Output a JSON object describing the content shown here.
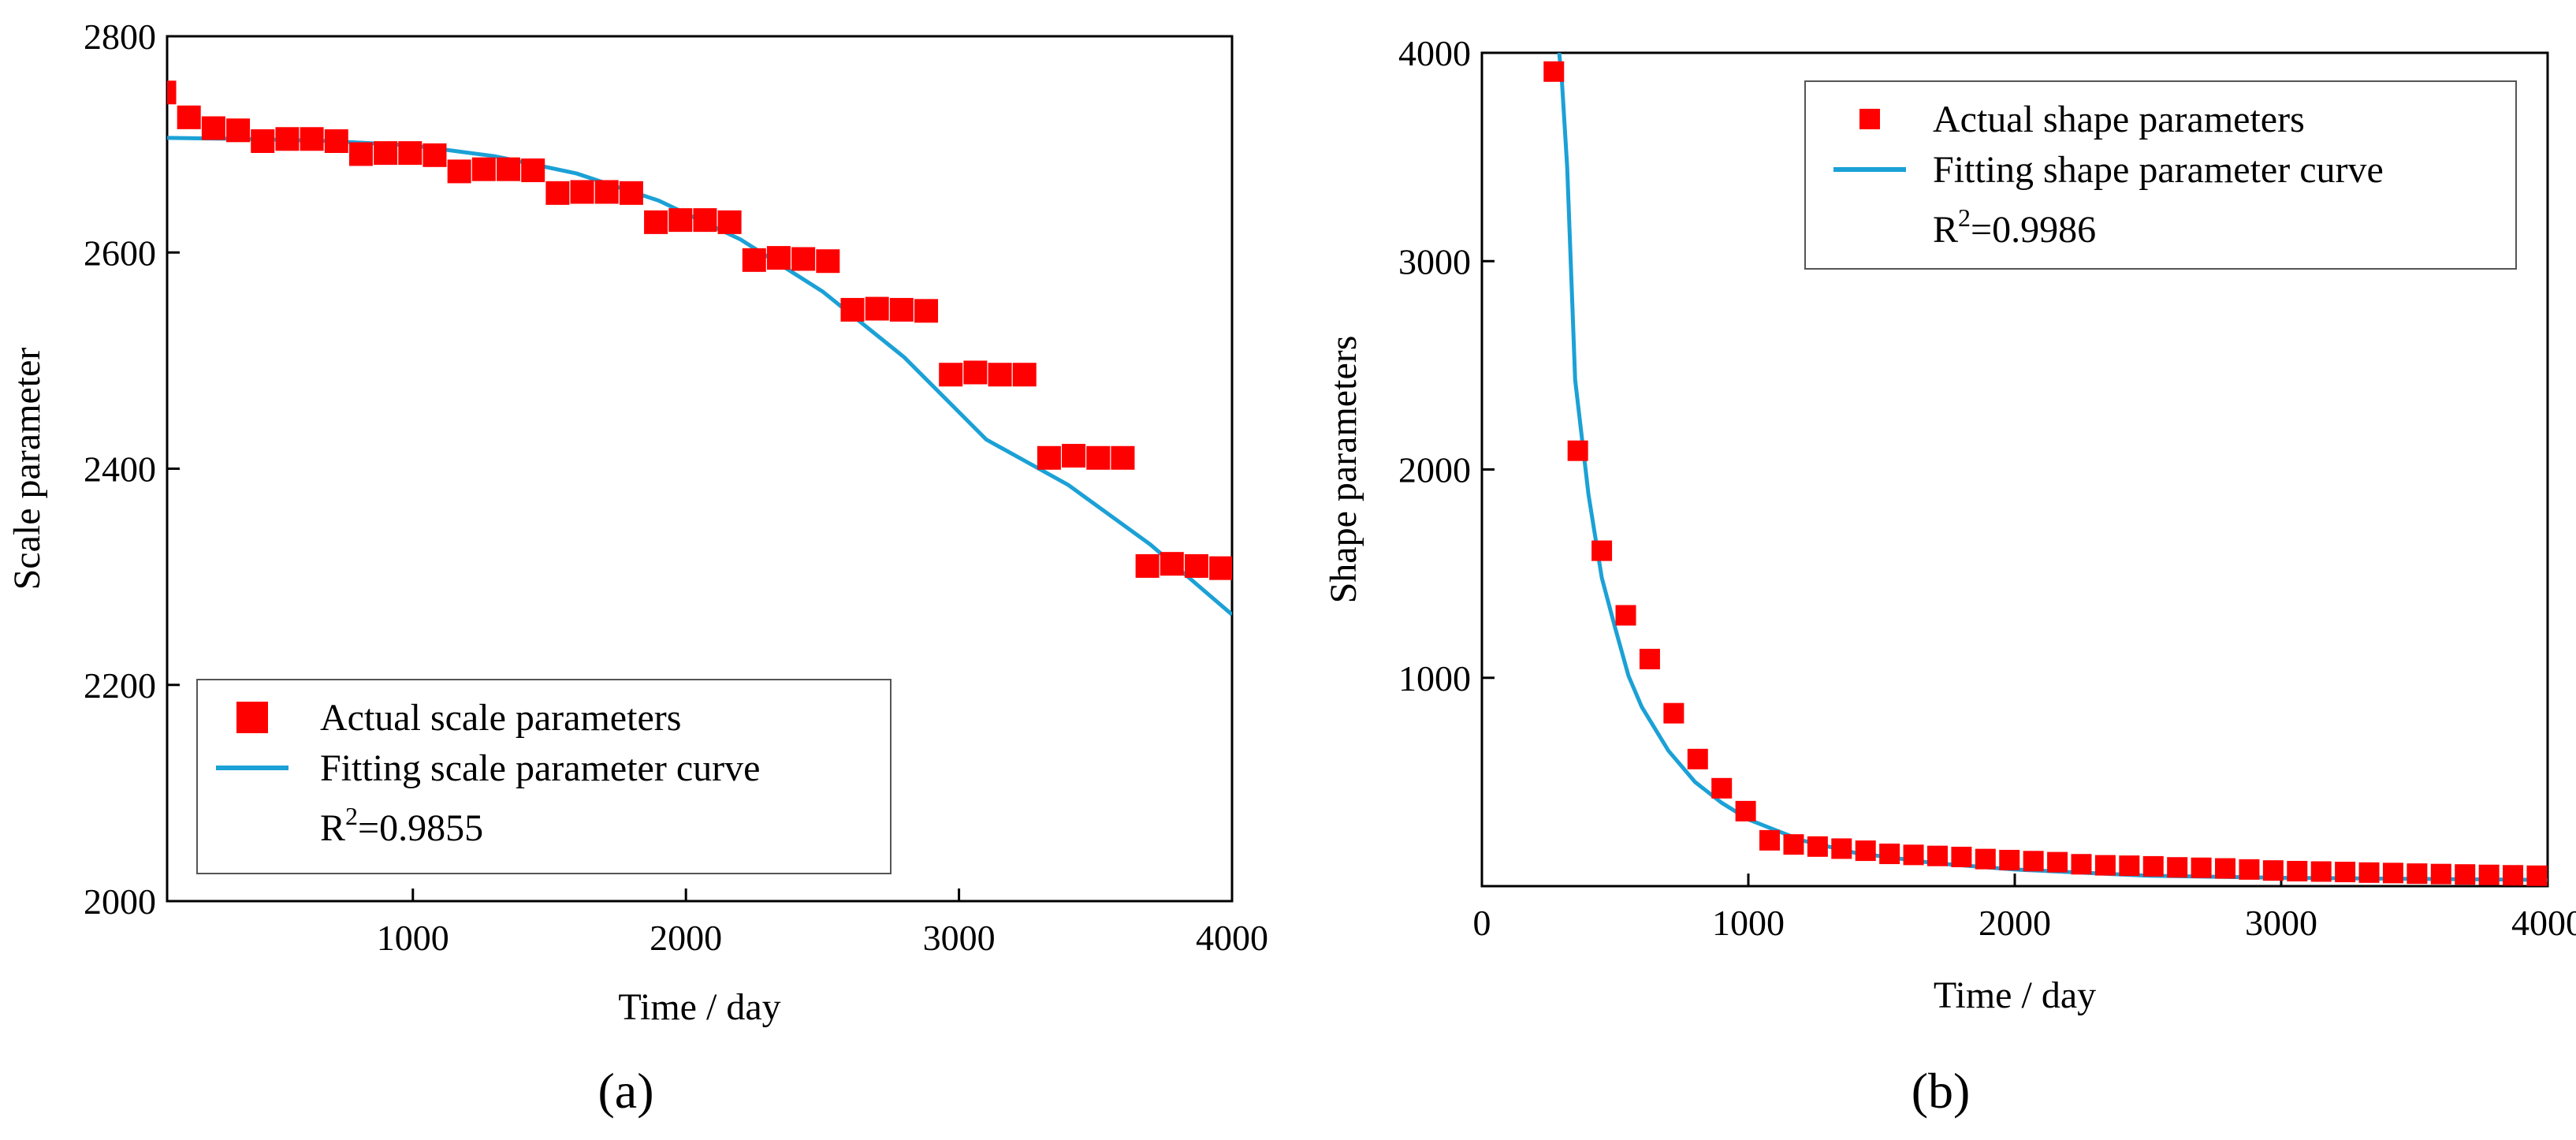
{
  "colors": {
    "marker": "#ff0000",
    "curve": "#1ba1d6",
    "axis": "#000000"
  },
  "panels": [
    {
      "label": "(a)",
      "letter": "a"
    },
    {
      "label": "(b)",
      "letter": "b"
    }
  ],
  "chart_data": [
    {
      "type": "scatter",
      "xlabel": "Time / day",
      "ylabel": "Scale parameter",
      "xlim": [
        100,
        4000
      ],
      "ylim": [
        2000,
        2800
      ],
      "xticks": [
        1000,
        2000,
        3000,
        4000
      ],
      "yticks": [
        2000,
        2200,
        2400,
        2600,
        2800
      ],
      "grid": false,
      "legend_position": "bottom-left",
      "legend": [
        "Actual scale parameters",
        "Fitting scale parameter curve"
      ],
      "annotation": {
        "base": "R",
        "sup": "2",
        "rest": "=0.9855"
      },
      "series": [
        {
          "name": "Actual scale parameters",
          "kind": "scatter",
          "x": [
            90,
            180,
            270,
            360,
            450,
            540,
            630,
            720,
            810,
            900,
            990,
            1080,
            1170,
            1260,
            1350,
            1440,
            1530,
            1620,
            1710,
            1800,
            1890,
            1980,
            2070,
            2160,
            2250,
            2340,
            2430,
            2520,
            2610,
            2700,
            2790,
            2880,
            2970,
            3060,
            3150,
            3240,
            3330,
            3420,
            3510,
            3600,
            3690,
            3780,
            3870,
            3960
          ],
          "y": [
            2748,
            2725,
            2715,
            2713,
            2703,
            2705,
            2705,
            2703,
            2691,
            2692,
            2692,
            2690,
            2675,
            2677,
            2677,
            2676,
            2655,
            2656,
            2656,
            2655,
            2628,
            2630,
            2630,
            2628,
            2593,
            2595,
            2594,
            2592,
            2547,
            2548,
            2547,
            2546,
            2487,
            2489,
            2487,
            2487,
            2410,
            2412,
            2410,
            2410,
            2310,
            2312,
            2310,
            2308
          ]
        },
        {
          "name": "Fitting scale parameter curve",
          "kind": "line",
          "x": [
            100,
            400,
            700,
            1000,
            1300,
            1600,
            1900,
            2200,
            2500,
            2800,
            3100,
            3400,
            3700,
            4000
          ],
          "y": [
            2706,
            2705,
            2703,
            2699,
            2689,
            2673,
            2648,
            2612,
            2564,
            2503,
            2427,
            2385,
            2330,
            2265
          ]
        }
      ]
    },
    {
      "type": "scatter",
      "xlabel": "Time / day",
      "ylabel": "Shape parameters",
      "xlim": [
        0,
        4000
      ],
      "ylim": [
        0,
        4000
      ],
      "xticks": [
        0,
        1000,
        2000,
        3000,
        4000
      ],
      "yticks": [
        1000,
        2000,
        3000,
        4000
      ],
      "grid": false,
      "legend_position": "top-right",
      "legend": [
        "Actual shape parameters",
        "Fitting shape parameter curve"
      ],
      "annotation": {
        "base": "R",
        "sup": "2",
        "rest": "=0.9986"
      },
      "series": [
        {
          "name": "Actual shape parameters",
          "kind": "scatter",
          "x": [
            270,
            360,
            450,
            540,
            630,
            720,
            810,
            900,
            990,
            1080,
            1170,
            1260,
            1350,
            1440,
            1530,
            1620,
            1710,
            1800,
            1890,
            1980,
            2070,
            2160,
            2250,
            2340,
            2430,
            2520,
            2610,
            2700,
            2790,
            2880,
            2970,
            3060,
            3150,
            3240,
            3330,
            3420,
            3510,
            3600,
            3690,
            3780,
            3870,
            3960
          ],
          "y": [
            3910,
            2090,
            1610,
            1300,
            1090,
            830,
            610,
            470,
            360,
            220,
            200,
            190,
            180,
            170,
            155,
            150,
            145,
            140,
            130,
            125,
            120,
            115,
            105,
            100,
            98,
            95,
            90,
            88,
            85,
            80,
            75,
            72,
            70,
            68,
            65,
            63,
            60,
            58,
            56,
            54,
            52,
            50
          ]
        },
        {
          "name": "Fitting shape parameter curve",
          "kind": "line",
          "x": [
            290,
            300,
            320,
            350,
            400,
            450,
            500,
            550,
            600,
            700,
            800,
            900,
            1000,
            1200,
            1400,
            1700,
            2000,
            2500,
            3000,
            3500,
            4000
          ],
          "y": [
            4000,
            3870,
            3450,
            2430,
            1880,
            1480,
            1240,
            1010,
            860,
            650,
            500,
            400,
            320,
            220,
            160,
            110,
            80,
            50,
            40,
            35,
            30
          ]
        }
      ]
    }
  ]
}
